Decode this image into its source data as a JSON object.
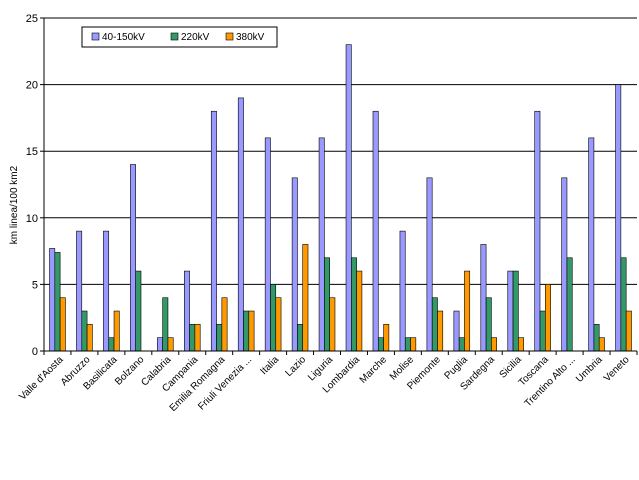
{
  "chart_data": {
    "type": "bar",
    "title": "",
    "xlabel": "",
    "ylabel": "km linea/100 km2",
    "ylim": [
      0,
      25
    ],
    "yticks": [
      0,
      5,
      10,
      15,
      20,
      25
    ],
    "grid": true,
    "legend_position": "top-left",
    "categories": [
      "Valle d'Aosta",
      "Abruzzo",
      "Basilicata",
      "Bolzano",
      "Calabria",
      "Campania",
      "Emilia Romagna",
      "Friuli Venezia ...",
      "Italia",
      "Lazio",
      "Liguria",
      "Lombardia",
      "Marche",
      "Molise",
      "Piemonte",
      "Puglia",
      "Sardegna",
      "Sicilia",
      "Toscana",
      "Trentino Alto ...",
      "Umbria",
      "Veneto"
    ],
    "series": [
      {
        "name": "40-150kV",
        "color": "#9999ff",
        "values": [
          7.7,
          9,
          9,
          14,
          1,
          6,
          18,
          19,
          16,
          13,
          16,
          23,
          18,
          9,
          13,
          3,
          8,
          6,
          18,
          13,
          16,
          20
        ]
      },
      {
        "name": "220kV",
        "color": "#339966",
        "values": [
          7.4,
          3,
          1,
          6,
          4,
          2,
          2,
          3,
          5,
          2,
          7,
          7,
          1,
          1,
          4,
          1,
          4,
          6,
          3,
          7,
          2,
          7
        ]
      },
      {
        "name": "380kV",
        "color": "#ff9900",
        "values": [
          4,
          2,
          3,
          0,
          1,
          2,
          4,
          3,
          4,
          8,
          4,
          6,
          2,
          1,
          3,
          6,
          1,
          1,
          5,
          0,
          1,
          3
        ]
      }
    ]
  }
}
